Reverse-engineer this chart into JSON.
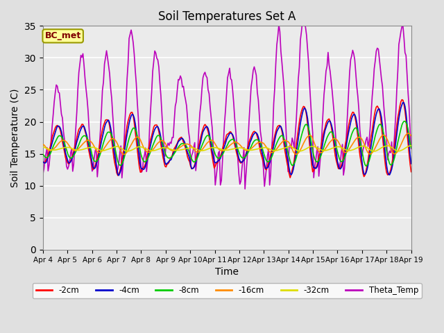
{
  "title": "Soil Temperatures Set A",
  "xlabel": "Time",
  "ylabel": "Soil Temperature (C)",
  "ylim": [
    0,
    35
  ],
  "yticks": [
    0,
    5,
    10,
    15,
    20,
    25,
    30,
    35
  ],
  "n_days": 15,
  "xtick_labels": [
    "Apr 4",
    "Apr 5",
    "Apr 6",
    "Apr 7",
    "Apr 8",
    "Apr 9",
    "Apr 10",
    "Apr 11",
    "Apr 12",
    "Apr 13",
    "Apr 14",
    "Apr 15",
    "Apr 16",
    "Apr 17",
    "Apr 18",
    "Apr 19"
  ],
  "line_colors": {
    "-2cm": "#FF0000",
    "-4cm": "#0000CC",
    "-8cm": "#00CC00",
    "-16cm": "#FF8C00",
    "-32cm": "#DDDD00",
    "Theta_Temp": "#BB00BB"
  },
  "annotation_text": "BC_met",
  "annotation_bg": "#FFFF99",
  "annotation_border": "#999900",
  "annotation_text_color": "#800000",
  "fig_bg_color": "#E0E0E0",
  "plot_bg_color": "#EBEBEB",
  "grid_color": "#FFFFFF",
  "figsize": [
    6.4,
    4.8
  ],
  "dpi": 100,
  "lw": 1.2
}
